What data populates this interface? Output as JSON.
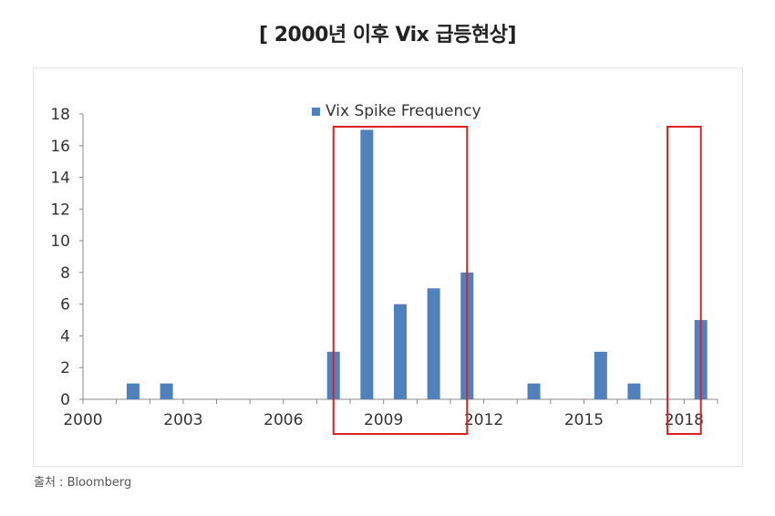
{
  "page": {
    "title": "[ 2000년 이후 Vix 급등현상]",
    "source": "출처 : Bloomberg"
  },
  "colors": {
    "bar": "#4F81BD",
    "highlight": "#E02020",
    "axis": "#888888",
    "text": "#333333"
  },
  "chart_data": {
    "type": "bar",
    "series": [
      {
        "name": "Vix Spike Frequency",
        "x": [
          2000,
          2001,
          2002,
          2003,
          2004,
          2005,
          2006,
          2007,
          2008,
          2009,
          2010,
          2011,
          2012,
          2013,
          2014,
          2015,
          2016,
          2017,
          2018
        ],
        "values": [
          0,
          1,
          1,
          0,
          0,
          0,
          0,
          3,
          17,
          6,
          7,
          8,
          0,
          1,
          0,
          3,
          1,
          0,
          5
        ]
      }
    ],
    "xticks": [
      2000,
      2003,
      2006,
      2009,
      2012,
      2015,
      2018
    ],
    "yticks": [
      0,
      2,
      4,
      6,
      8,
      10,
      12,
      14,
      16,
      18
    ],
    "ylim": [
      0,
      18
    ],
    "xlim": [
      2000,
      2019
    ],
    "legend": "top-center",
    "highlight_ranges": [
      [
        2007.5,
        2011.5
      ],
      [
        2017.5,
        2018.5
      ]
    ]
  }
}
